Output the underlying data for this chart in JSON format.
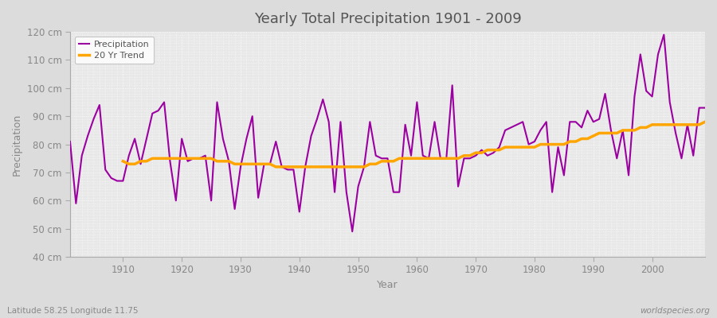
{
  "title": "Yearly Total Precipitation 1901 - 2009",
  "xlabel": "Year",
  "ylabel": "Precipitation",
  "lat_lon_label": "Latitude 58.25 Longitude 11.75",
  "watermark": "worldspecies.org",
  "years": [
    1901,
    1902,
    1903,
    1904,
    1905,
    1906,
    1907,
    1908,
    1909,
    1910,
    1911,
    1912,
    1913,
    1914,
    1915,
    1916,
    1917,
    1918,
    1919,
    1920,
    1921,
    1922,
    1923,
    1924,
    1925,
    1926,
    1927,
    1928,
    1929,
    1930,
    1931,
    1932,
    1933,
    1934,
    1935,
    1936,
    1937,
    1938,
    1939,
    1940,
    1941,
    1942,
    1943,
    1944,
    1945,
    1946,
    1947,
    1948,
    1949,
    1950,
    1951,
    1952,
    1953,
    1954,
    1955,
    1956,
    1957,
    1958,
    1959,
    1960,
    1961,
    1962,
    1963,
    1964,
    1965,
    1966,
    1967,
    1968,
    1969,
    1970,
    1971,
    1972,
    1973,
    1974,
    1975,
    1976,
    1977,
    1978,
    1979,
    1980,
    1981,
    1982,
    1983,
    1984,
    1985,
    1986,
    1987,
    1988,
    1989,
    1990,
    1991,
    1992,
    1993,
    1994,
    1995,
    1996,
    1997,
    1998,
    1999,
    2000,
    2001,
    2002,
    2003,
    2004,
    2005,
    2006,
    2007,
    2008,
    2009
  ],
  "precipitation": [
    81,
    59,
    76,
    83,
    89,
    94,
    71,
    68,
    67,
    67,
    76,
    82,
    73,
    82,
    91,
    92,
    95,
    74,
    60,
    82,
    74,
    75,
    75,
    76,
    60,
    95,
    82,
    74,
    57,
    72,
    82,
    90,
    61,
    73,
    73,
    81,
    72,
    71,
    71,
    56,
    72,
    83,
    89,
    96,
    88,
    63,
    88,
    63,
    49,
    65,
    72,
    88,
    76,
    75,
    75,
    63,
    63,
    87,
    76,
    95,
    76,
    75,
    88,
    75,
    75,
    101,
    65,
    75,
    75,
    76,
    78,
    76,
    77,
    79,
    85,
    86,
    87,
    88,
    80,
    81,
    85,
    88,
    63,
    79,
    69,
    88,
    88,
    86,
    92,
    88,
    89,
    98,
    85,
    75,
    85,
    69,
    97,
    112,
    99,
    97,
    112,
    119,
    95,
    84,
    75,
    87,
    76,
    93,
    93
  ],
  "trend_years": [
    1910,
    1911,
    1912,
    1913,
    1914,
    1915,
    1916,
    1917,
    1918,
    1919,
    1920,
    1921,
    1922,
    1923,
    1924,
    1925,
    1926,
    1927,
    1928,
    1929,
    1930,
    1931,
    1932,
    1933,
    1934,
    1935,
    1936,
    1937,
    1938,
    1939,
    1940,
    1941,
    1942,
    1943,
    1944,
    1945,
    1946,
    1947,
    1948,
    1949,
    1950,
    1951,
    1952,
    1953,
    1954,
    1955,
    1956,
    1957,
    1958,
    1959,
    1960,
    1961,
    1962,
    1963,
    1964,
    1965,
    1966,
    1967,
    1968,
    1969,
    1970,
    1971,
    1972,
    1973,
    1974,
    1975,
    1976,
    1977,
    1978,
    1979,
    1980,
    1981,
    1982,
    1983,
    1984,
    1985,
    1986,
    1987,
    1988,
    1989,
    1990,
    1991,
    1992,
    1993,
    1994,
    1995,
    1996,
    1997,
    1998,
    1999,
    2000,
    2001,
    2002,
    2003,
    2004,
    2005,
    2006,
    2007,
    2008,
    2009
  ],
  "trend": [
    74,
    73,
    73,
    74,
    74,
    75,
    75,
    75,
    75,
    75,
    75,
    75,
    75,
    75,
    75,
    75,
    74,
    74,
    74,
    73,
    73,
    73,
    73,
    73,
    73,
    73,
    72,
    72,
    72,
    72,
    72,
    72,
    72,
    72,
    72,
    72,
    72,
    72,
    72,
    72,
    72,
    72,
    73,
    73,
    74,
    74,
    74,
    75,
    75,
    75,
    75,
    75,
    75,
    75,
    75,
    75,
    75,
    75,
    76,
    76,
    77,
    77,
    78,
    78,
    78,
    79,
    79,
    79,
    79,
    79,
    79,
    80,
    80,
    80,
    80,
    80,
    81,
    81,
    82,
    82,
    83,
    84,
    84,
    84,
    84,
    85,
    85,
    85,
    86,
    86,
    87,
    87,
    87,
    87,
    87,
    87,
    87,
    87,
    87,
    88
  ],
  "precip_color": "#9B00A0",
  "trend_color": "#FFA500",
  "bg_color": "#DCDCDC",
  "plot_bg_color": "#E8E8E8",
  "grid_color": "#FFFFFF",
  "ylim": [
    40,
    120
  ],
  "yticks": [
    40,
    50,
    60,
    70,
    80,
    90,
    100,
    110,
    120
  ],
  "ytick_labels": [
    "40 cm",
    "50 cm",
    "60 cm",
    "70 cm",
    "80 cm",
    "90 cm",
    "100 cm",
    "110 cm",
    "120 cm"
  ],
  "xlim": [
    1901,
    2009
  ],
  "xticks": [
    1910,
    1920,
    1930,
    1940,
    1950,
    1960,
    1970,
    1980,
    1990,
    2000
  ]
}
